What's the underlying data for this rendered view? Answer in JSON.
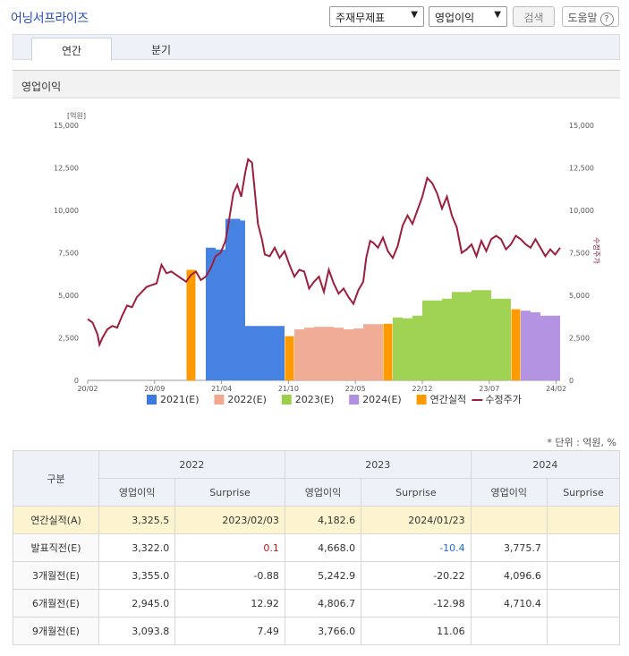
{
  "header": {
    "company": "어닝서프라이즈",
    "select1": "주재무제표",
    "select2": "영업이익",
    "search_btn": "검색",
    "help_btn": "도움말",
    "help_icon_text": "?"
  },
  "tabs": [
    {
      "label": "연간"
    },
    {
      "label": "분기"
    }
  ],
  "section_title": "영업이익",
  "chart_data": {
    "type": "area",
    "y_left_unit": "[억원]",
    "y_right_label": "수정주가",
    "ylim": [
      0,
      15000
    ],
    "y_ticks": [
      "15,000",
      "12,500",
      "10,000",
      "7,500",
      "5,000",
      "2,500",
      "0"
    ],
    "y_ticks_right": [
      "15,000",
      "12,500",
      "10,000",
      "7,500",
      "5,000",
      "2,500",
      "0"
    ],
    "x_ticks": [
      "20/02",
      "20/09",
      "21/04",
      "21/10",
      "22/05",
      "22/12",
      "23/07",
      "24/02"
    ],
    "legend": [
      "2021(E)",
      "2022(E)",
      "2023(E)",
      "2024(E)",
      "연간실적",
      "수정주가"
    ],
    "colors": {
      "2021(E)": "#3b7be0",
      "2022(E)": "#f0a890",
      "2023(E)": "#9bd14a",
      "2024(E)": "#b08ee0",
      "연간실적": "#ff9a00",
      "수정주가": "#9c1f3d"
    },
    "estimate_bands": [
      {
        "name": "2021(E)",
        "points": [
          [
            12,
            7800
          ],
          [
            13,
            7700
          ],
          [
            14,
            9500
          ],
          [
            15.5,
            9400
          ],
          [
            16,
            3200
          ],
          [
            18,
            3200
          ],
          [
            20,
            2900
          ]
        ]
      },
      {
        "name": "2022(E)",
        "points": [
          [
            21,
            3000
          ],
          [
            22,
            3100
          ],
          [
            23,
            3150
          ],
          [
            25,
            3100
          ],
          [
            26,
            3000
          ],
          [
            27,
            3050
          ],
          [
            28,
            3300
          ],
          [
            30,
            3350
          ]
        ]
      },
      {
        "name": "2023(E)",
        "points": [
          [
            31,
            3700
          ],
          [
            32,
            3650
          ],
          [
            33,
            3800
          ],
          [
            34,
            4700
          ],
          [
            36,
            4800
          ],
          [
            37,
            5200
          ],
          [
            39,
            5300
          ],
          [
            41,
            4800
          ],
          [
            43,
            4700
          ]
        ]
      },
      {
        "name": "2024(E)",
        "points": [
          [
            44,
            4100
          ],
          [
            45,
            4000
          ],
          [
            46,
            3800
          ],
          [
            48,
            3775
          ]
        ]
      }
    ],
    "actual_bars": [
      {
        "x": 10.5,
        "value": 6500
      },
      {
        "x": 20.5,
        "value": 2600
      },
      {
        "x": 30.5,
        "value": 3325.5
      },
      {
        "x": 43.5,
        "value": 4182.6
      }
    ],
    "x_range": [
      0,
      48
    ],
    "price": [
      [
        0,
        3600
      ],
      [
        0.5,
        3400
      ],
      [
        1,
        2700
      ],
      [
        1.2,
        2100
      ],
      [
        1.5,
        2500
      ],
      [
        2,
        3000
      ],
      [
        2.5,
        3200
      ],
      [
        3,
        3100
      ],
      [
        3.5,
        3800
      ],
      [
        4,
        4400
      ],
      [
        4.5,
        4300
      ],
      [
        5,
        4900
      ],
      [
        5.5,
        5200
      ],
      [
        6,
        5500
      ],
      [
        6.5,
        5600
      ],
      [
        7,
        5700
      ],
      [
        7.5,
        6800
      ],
      [
        8,
        6300
      ],
      [
        8.5,
        6400
      ],
      [
        9,
        6200
      ],
      [
        9.5,
        6000
      ],
      [
        10,
        5800
      ],
      [
        10.5,
        6200
      ],
      [
        11,
        6400
      ],
      [
        11.5,
        5900
      ],
      [
        12,
        6100
      ],
      [
        12.5,
        6600
      ],
      [
        13,
        7300
      ],
      [
        13.5,
        7500
      ],
      [
        14,
        8200
      ],
      [
        14.3,
        9200
      ],
      [
        14.8,
        11000
      ],
      [
        15.2,
        11500
      ],
      [
        15.6,
        10800
      ],
      [
        16,
        12200
      ],
      [
        16.3,
        13000
      ],
      [
        16.7,
        12800
      ],
      [
        17,
        11000
      ],
      [
        17.3,
        9200
      ],
      [
        17.7,
        8300
      ],
      [
        18,
        7400
      ],
      [
        18.5,
        7300
      ],
      [
        19,
        7800
      ],
      [
        19.5,
        7200
      ],
      [
        20,
        7600
      ],
      [
        20.5,
        6800
      ],
      [
        21,
        6100
      ],
      [
        21.5,
        6500
      ],
      [
        22,
        6400
      ],
      [
        22.5,
        5400
      ],
      [
        23,
        5800
      ],
      [
        23.5,
        6100
      ],
      [
        24,
        5200
      ],
      [
        24.5,
        6500
      ],
      [
        25,
        5700
      ],
      [
        25.5,
        5100
      ],
      [
        26,
        5400
      ],
      [
        26.5,
        4900
      ],
      [
        27,
        4500
      ],
      [
        27.5,
        5300
      ],
      [
        28,
        5800
      ],
      [
        28.3,
        7200
      ],
      [
        28.7,
        8200
      ],
      [
        29,
        8100
      ],
      [
        29.5,
        7800
      ],
      [
        30,
        8400
      ],
      [
        30.5,
        7600
      ],
      [
        31,
        7200
      ],
      [
        31.5,
        7900
      ],
      [
        32,
        9100
      ],
      [
        32.5,
        9700
      ],
      [
        33,
        9200
      ],
      [
        33.5,
        10000
      ],
      [
        34,
        10800
      ],
      [
        34.5,
        11900
      ],
      [
        35,
        11600
      ],
      [
        35.5,
        11000
      ],
      [
        36,
        10100
      ],
      [
        36.5,
        10800
      ],
      [
        37,
        9700
      ],
      [
        37.5,
        9000
      ],
      [
        38,
        7500
      ],
      [
        38.5,
        7700
      ],
      [
        39,
        8000
      ],
      [
        39.5,
        7300
      ],
      [
        40,
        8200
      ],
      [
        40.5,
        7600
      ],
      [
        41,
        8300
      ],
      [
        41.5,
        8500
      ],
      [
        42,
        8300
      ],
      [
        42.5,
        7700
      ],
      [
        43,
        8000
      ],
      [
        43.5,
        8500
      ],
      [
        44,
        8300
      ],
      [
        44.5,
        8000
      ],
      [
        45,
        7800
      ],
      [
        45.5,
        8300
      ],
      [
        46,
        7800
      ],
      [
        46.5,
        7300
      ],
      [
        47,
        7700
      ],
      [
        47.5,
        7400
      ],
      [
        48,
        7800
      ]
    ]
  },
  "unit_note": "* 단위 : 억원, %",
  "table": {
    "col_group": "구분",
    "years": [
      "2022",
      "2023",
      "2024"
    ],
    "sub_headers": [
      "영업이익",
      "Surprise"
    ],
    "rows": [
      {
        "label": "연간실적(A)",
        "cells": [
          "3,325.5",
          "2023/02/03",
          "4,182.6",
          "2024/01/23",
          "",
          ""
        ]
      },
      {
        "label": "발표직전(E)",
        "cells": [
          "3,322.0",
          "0.1",
          "4,668.0",
          "-10.4",
          "3,775.7",
          ""
        ]
      },
      {
        "label": "3개월전(E)",
        "cells": [
          "3,355.0",
          "-0.88",
          "5,242.9",
          "-20.22",
          "4,096.6",
          ""
        ]
      },
      {
        "label": "6개월전(E)",
        "cells": [
          "2,945.0",
          "12.92",
          "4,806.7",
          "-12.98",
          "4,710.4",
          ""
        ]
      },
      {
        "label": "9개월전(E)",
        "cells": [
          "3,093.8",
          "7.49",
          "3,766.0",
          "11.06",
          "",
          ""
        ]
      }
    ]
  }
}
